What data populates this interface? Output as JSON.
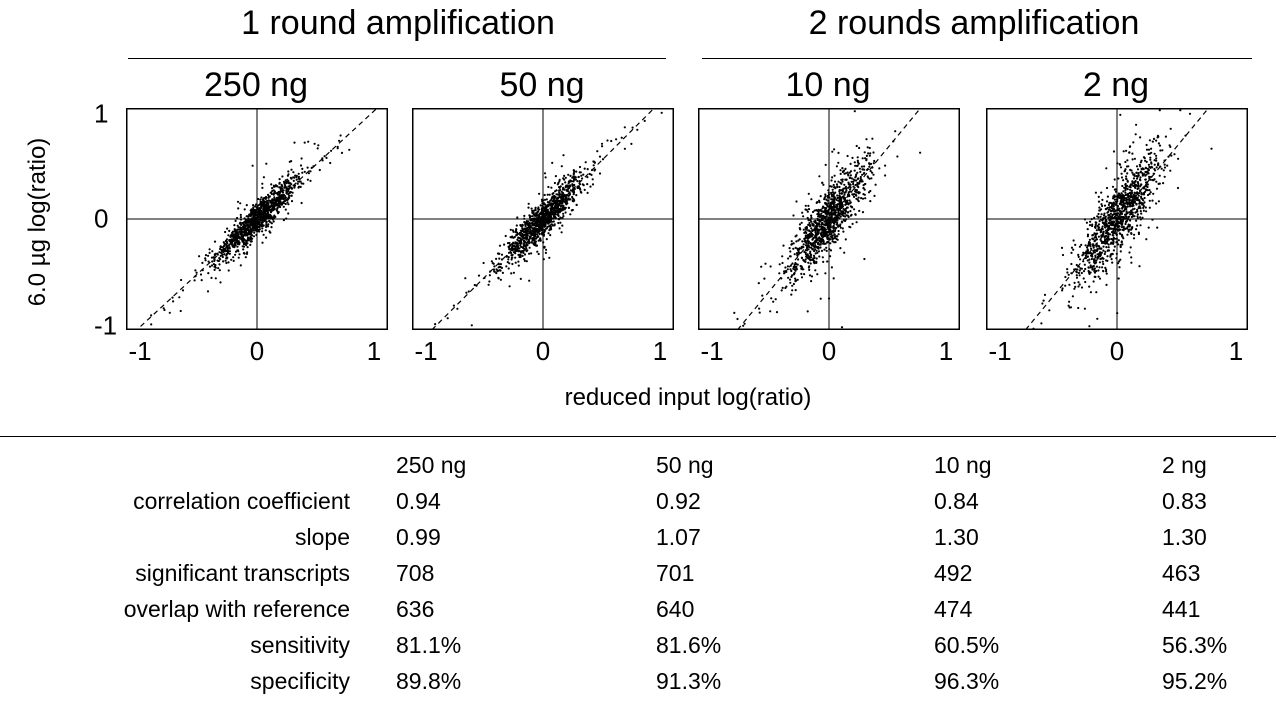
{
  "groups": [
    {
      "title": "1 round amplification"
    },
    {
      "title": "2 rounds amplification"
    }
  ],
  "y_axis_label": "6.0 µg log(ratio)",
  "x_axis_label": "reduced input log(ratio)",
  "chart_data": [
    {
      "type": "scatter",
      "title": "250 ng",
      "xlim": [
        -1.1,
        1.1
      ],
      "ylim": [
        -1,
        1
      ],
      "x_ticks": [
        "-1",
        "0",
        "1"
      ],
      "y_ticks": [
        "1",
        "0",
        "-1"
      ],
      "reference_lines": [
        "x=0",
        "y=0"
      ],
      "fit_line_slope": 0.99,
      "fit_style": "dashed",
      "correlation": 0.94,
      "spread": 0.07,
      "n_points": 1100
    },
    {
      "type": "scatter",
      "title": "50 ng",
      "xlim": [
        -1.1,
        1.1
      ],
      "ylim": [
        -1,
        1
      ],
      "x_ticks": [
        "-1",
        "0",
        "1"
      ],
      "y_ticks": [
        "1",
        "0",
        "-1"
      ],
      "reference_lines": [
        "x=0",
        "y=0"
      ],
      "fit_line_slope": 1.07,
      "fit_style": "dashed",
      "correlation": 0.92,
      "spread": 0.08,
      "n_points": 1100
    },
    {
      "type": "scatter",
      "title": "10 ng",
      "xlim": [
        -1.1,
        1.1
      ],
      "ylim": [
        -1,
        1
      ],
      "x_ticks": [
        "-1",
        "0",
        "1"
      ],
      "y_ticks": [
        "1",
        "0",
        "-1"
      ],
      "reference_lines": [
        "x=0",
        "y=0"
      ],
      "fit_line_slope": 1.3,
      "fit_style": "dashed",
      "correlation": 0.84,
      "spread": 0.13,
      "n_points": 1100
    },
    {
      "type": "scatter",
      "title": "2 ng",
      "xlim": [
        -1.1,
        1.1
      ],
      "ylim": [
        -1,
        1
      ],
      "x_ticks": [
        "-1",
        "0",
        "1"
      ],
      "y_ticks": [
        "1",
        "0",
        "-1"
      ],
      "reference_lines": [
        "x=0",
        "y=0"
      ],
      "fit_line_slope": 1.3,
      "fit_style": "dashed",
      "correlation": 0.83,
      "spread": 0.15,
      "n_points": 1100
    }
  ],
  "table": {
    "columns": [
      "250 ng",
      "50 ng",
      "10 ng",
      "2 ng"
    ],
    "rows": [
      {
        "label": "correlation coefficient",
        "values": [
          "0.94",
          "0.92",
          "0.84",
          "0.83"
        ]
      },
      {
        "label": "slope",
        "values": [
          "0.99",
          "1.07",
          "1.30",
          "1.30"
        ]
      },
      {
        "label": "significant transcripts",
        "values": [
          "708",
          "701",
          "492",
          "463"
        ]
      },
      {
        "label": "overlap with reference",
        "values": [
          "636",
          "640",
          "474",
          "441"
        ]
      },
      {
        "label": "sensitivity",
        "values": [
          "81.1%",
          "81.6%",
          "60.5%",
          "56.3%"
        ]
      },
      {
        "label": "specificity",
        "values": [
          "89.8%",
          "91.3%",
          "96.3%",
          "95.2%"
        ]
      }
    ]
  }
}
